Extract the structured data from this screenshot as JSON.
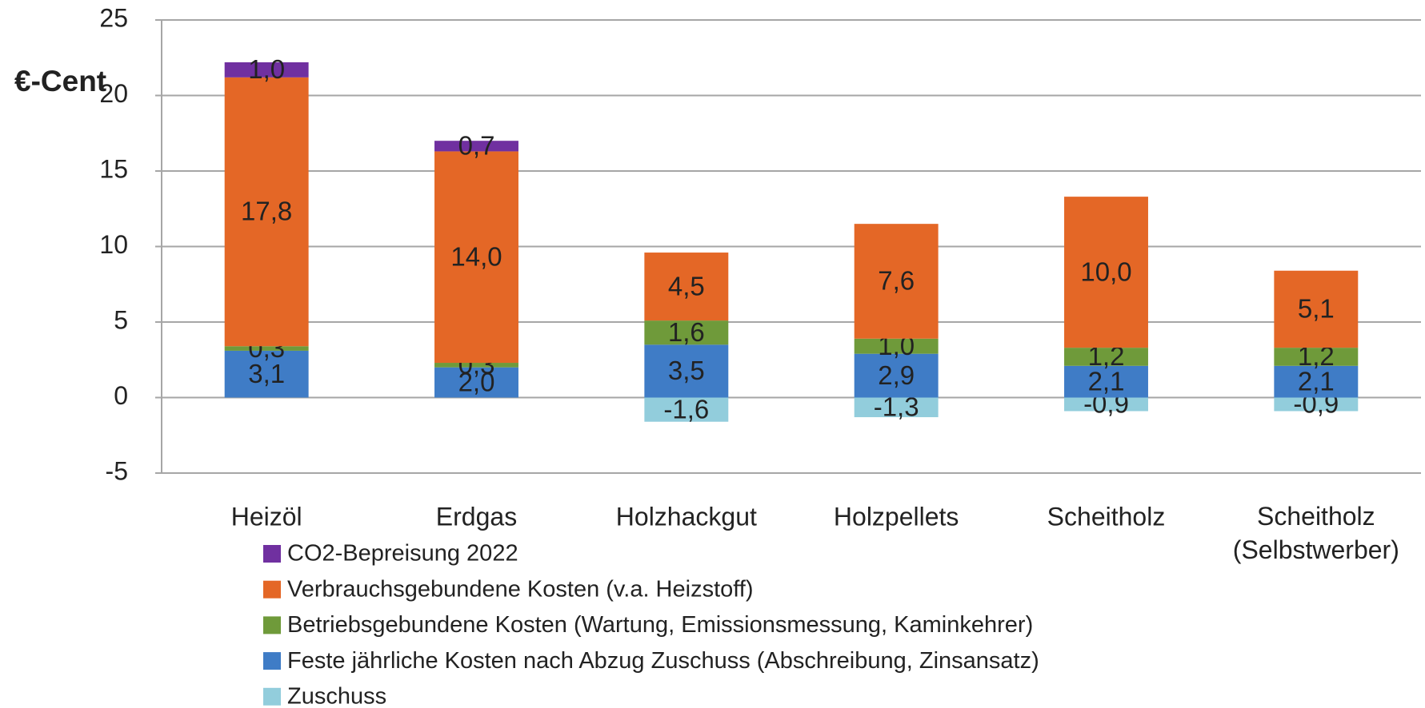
{
  "chart_data": {
    "type": "stacked_bar",
    "y_label": "€-Cent",
    "categories": [
      "Heizöl",
      "Erdgas",
      "Holzhackgut",
      "Holzpellets",
      "Scheitholz",
      "Scheitholz (Selbstwerber)"
    ],
    "series": [
      {
        "name": "CO2-Bepreisung 2022",
        "color": "#7030a0",
        "values": [
          1.0,
          0.7,
          null,
          null,
          null,
          null
        ],
        "value_labels": [
          "1,0",
          "0,7",
          null,
          null,
          null,
          null
        ]
      },
      {
        "name": "Verbrauchsgebundene Kosten (v.a. Heizstoff)",
        "color": "#e46726",
        "values": [
          17.8,
          14.0,
          4.5,
          7.6,
          10.0,
          5.1
        ],
        "value_labels": [
          "17,8",
          "14,0",
          "4,5",
          "7,6",
          "10,0",
          "5,1"
        ]
      },
      {
        "name": "Betriebsgebundene Kosten (Wartung, Emissionsmessung, Kaminkehrer)",
        "color": "#6f9a3a",
        "values": [
          0.3,
          0.3,
          1.6,
          1.0,
          1.2,
          1.2
        ],
        "value_labels": [
          "0,3",
          "0,3",
          "1,6",
          "1,0",
          "1,2",
          "1,2"
        ]
      },
      {
        "name": "Feste jährliche Kosten nach Abzug Zuschuss (Abschreibung, Zinsansatz)",
        "color": "#3f7cc6",
        "values": [
          3.1,
          2.0,
          3.5,
          2.9,
          2.1,
          2.1
        ],
        "value_labels": [
          "3,1",
          "2,0",
          "3,5",
          "2,9",
          "2,1",
          "2,1"
        ]
      },
      {
        "name": "Zuschuss",
        "color": "#92cddc",
        "values": [
          null,
          null,
          -1.6,
          -1.3,
          -0.9,
          -0.9
        ],
        "value_labels": [
          null,
          null,
          "-1,6",
          "-1,3",
          "-0,9",
          "-0,9"
        ]
      }
    ],
    "ylim": [
      -5,
      25
    ],
    "yticks": [
      -5,
      0,
      5,
      10,
      15,
      20,
      25
    ],
    "grid": true
  }
}
